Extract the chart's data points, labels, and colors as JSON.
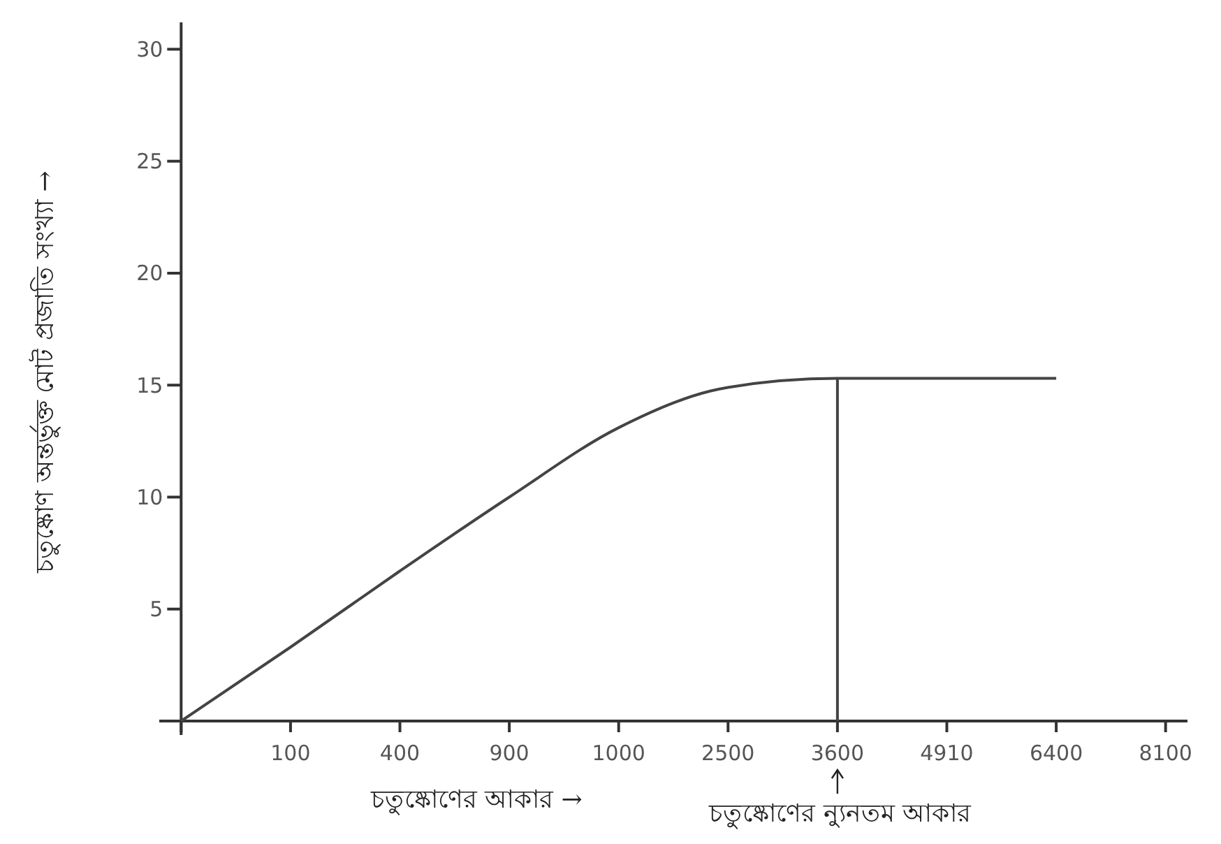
{
  "chart_data": {
    "type": "line",
    "xlabel": "চতুষ্কোণের আকার →",
    "ylabel": "চতুষ্কোণ অন্তর্ভুক্ত মোট প্রজাতি সংখ্যা →",
    "categories": [
      null,
      "100",
      "400",
      "900",
      "1000",
      "2500",
      "3600",
      "4910",
      "6400",
      "8100"
    ],
    "series": [
      {
        "color": "#444444",
        "values": [
          0,
          3.3,
          6.7,
          10,
          13.1,
          14.9,
          15.3,
          15.3,
          15.3,
          null
        ]
      }
    ],
    "ylim": [
      0,
      31.2
    ],
    "yticks": [
      5,
      10,
      15,
      20,
      25,
      30
    ],
    "ref_lines": [
      {
        "axis": "x",
        "value": "3600",
        "label": "চতুষ্কোণের ন্যুনতম আকার",
        "color": "#444444"
      }
    ],
    "grid": false
  }
}
